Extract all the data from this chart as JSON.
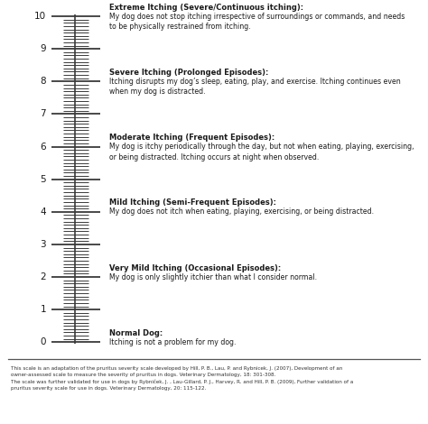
{
  "scale_min": 0,
  "scale_max": 10,
  "labels": [
    {
      "value": 10,
      "title": "Extreme Itching (Severe/Continuous itching):",
      "desc": "My dog does not stop itching irrespective of surroundings or commands, and needs\nto be physically restrained from itching."
    },
    {
      "value": 8,
      "title": "Severe Itching (Prolonged Episodes):",
      "desc": "Itching disrupts my dog’s sleep, eating, play, and exercise. Itching continues even\nwhen my dog is distracted."
    },
    {
      "value": 6,
      "title": "Moderate Itching (Frequent Episodes):",
      "desc": "My dog is itchy periodically through the day, but not when eating, playing, exercising,\nor being distracted. Itching occurs at night when observed."
    },
    {
      "value": 4,
      "title": "Mild Itching (Semi-Frequent Episodes):",
      "desc": "My dog does not itch when eating, playing, exercising, or being distracted."
    },
    {
      "value": 2,
      "title": "Very Mild Itching (Occasional Episodes):",
      "desc": "My dog is only slightly itchier than what I consider normal."
    },
    {
      "value": 0,
      "title": "Normal Dog:",
      "desc": "Itching is not a problem for my dog."
    }
  ],
  "footnote": "This scale is an adaptation of the pruritus severity scale developed by Hill, P. B., Lau, P. and Rybnicek, J. (2007), Development of an\nowner-assessed scale to measure the severity of pruritus in dogs. Veterinary Dermatology, 18: 301-308.\nThe scale was further validated for use in dogs by Rybniček, J. , Lau-Gillard, P. J., Harvey, R. and Hill, P. B. (2009), Further validation of a\npruritus severity scale for use in dogs. Veterinary Dermatology, 20: 115-122.",
  "bg_color": "#ffffff",
  "text_color": "#1a1a1a",
  "line_color": "#3a3a3a",
  "footnote_color": "#333333"
}
